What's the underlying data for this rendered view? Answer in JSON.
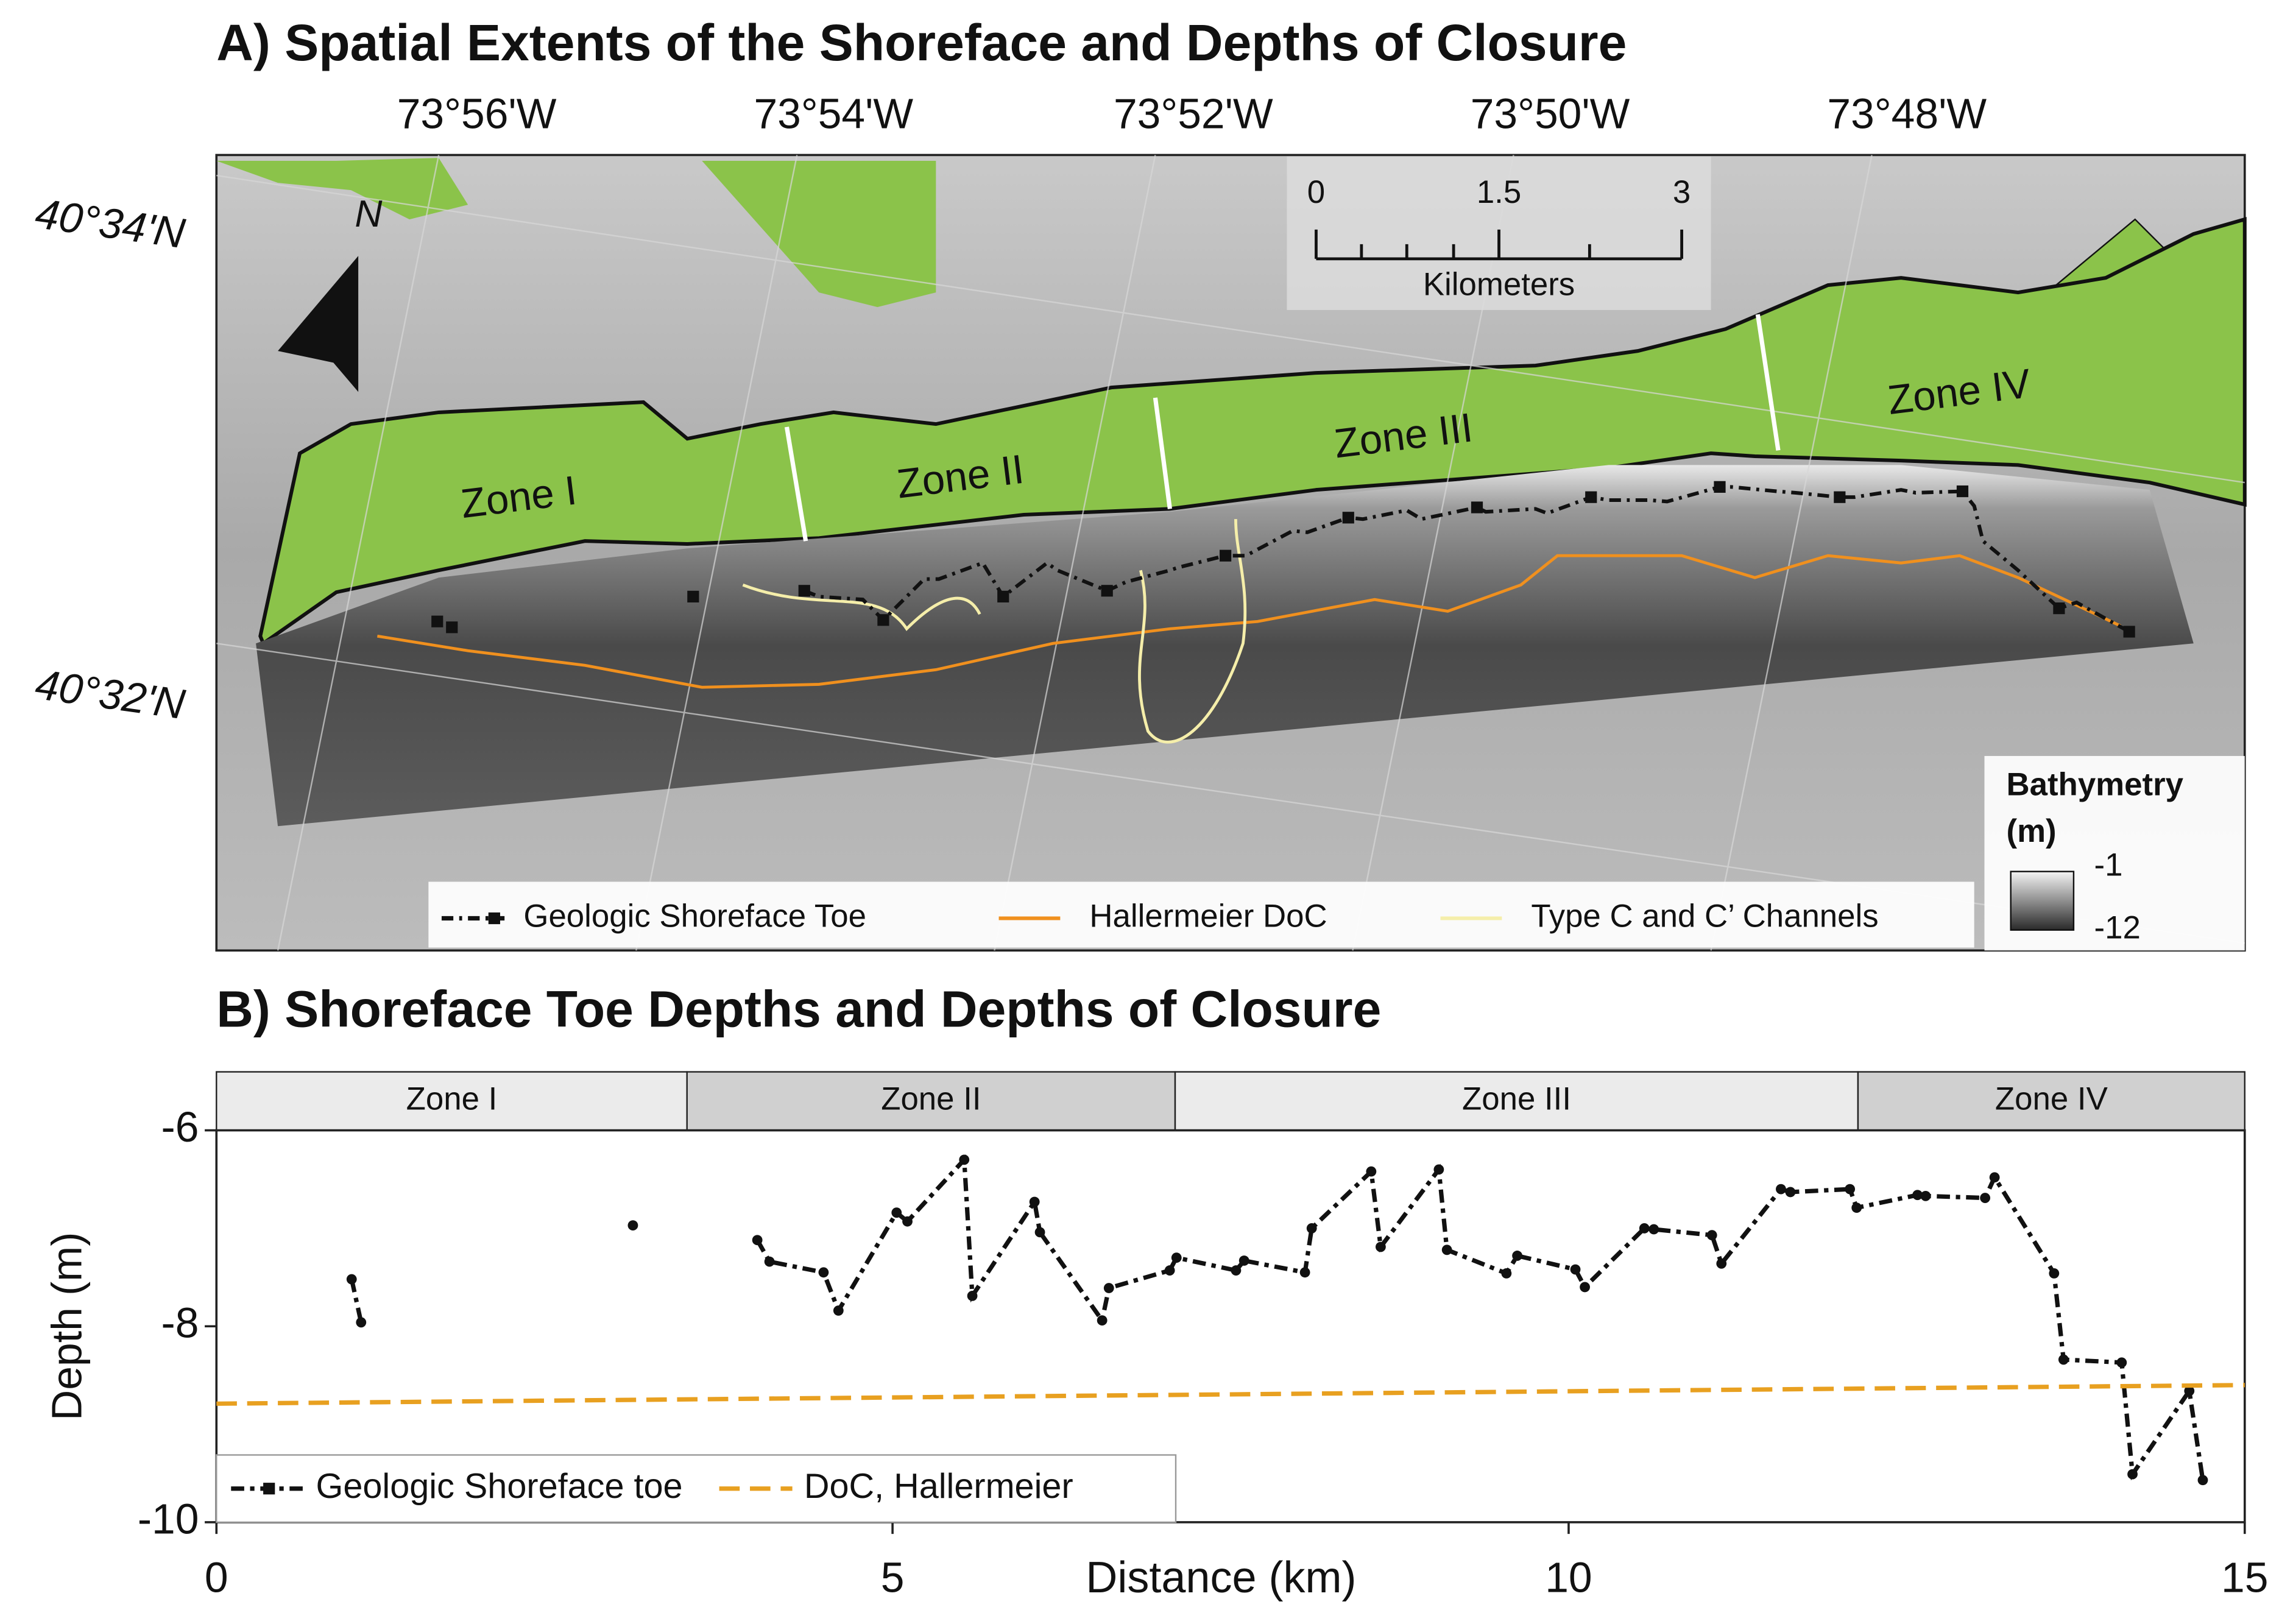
{
  "map": {
    "title": "A) Spatial Extents of the Shoreface and Depths of Closure",
    "longitudes": [
      "73°56'W",
      "73°54'W",
      "73°52'W",
      "73°50'W",
      "73°48'W"
    ],
    "latitudes": [
      "40°34'N",
      "40°32'N"
    ],
    "north": "N",
    "scale_bar": {
      "labels": [
        "0",
        "1.5",
        "3"
      ],
      "unit": "Kilometers"
    },
    "zones": [
      "Zone I",
      "Zone II",
      "Zone III",
      "Zone IV"
    ],
    "legend": [
      "Geologic Shoreface Toe",
      "Hallermeier DoC",
      "Type C and C’ Channels"
    ],
    "bathymetry_legend": {
      "title": "Bathymetry",
      "unit": "(m)",
      "high": "-1",
      "low": "-12"
    }
  },
  "chart_data": {
    "type": "line",
    "title": "B) Shoreface Toe Depths and Depths of Closure",
    "x_label": "Distance (km)",
    "y_label": "Depth (m)",
    "xlim": [
      0,
      15
    ],
    "xticks": [
      0,
      5,
      10,
      15
    ],
    "ylim": [
      -10,
      -6
    ],
    "yticks": [
      -10,
      -8,
      -6
    ],
    "legend": "lower left",
    "zones": [
      {
        "label": "Zone I",
        "start": 0,
        "end": 3.48
      },
      {
        "label": "Zone II",
        "start": 3.48,
        "end": 7.09
      },
      {
        "label": "Zone III",
        "start": 7.09,
        "end": 12.14
      },
      {
        "label": "Zone IV",
        "start": 12.14,
        "end": 15
      }
    ],
    "series": [
      {
        "name": "Geologic Shoreface toe",
        "color": "#111111",
        "style": "dashdot",
        "markers": true,
        "x": [
          1.0,
          1.07,
          null,
          3.08,
          null,
          4.0,
          4.09,
          4.49,
          4.6,
          5.03,
          5.11,
          5.53,
          5.59,
          6.05,
          6.09,
          6.55,
          6.6,
          7.05,
          7.1,
          7.54,
          7.6,
          8.05,
          8.1,
          8.54,
          8.61,
          9.04,
          9.1,
          9.54,
          9.62,
          10.05,
          10.12,
          10.56,
          10.63,
          11.06,
          11.13,
          11.57,
          11.64,
          12.08,
          12.13,
          12.58,
          12.64,
          13.08,
          13.15,
          13.59,
          13.66,
          14.09,
          14.17,
          14.59,
          14.69
        ],
        "values": [
          -7.52,
          -7.96,
          null,
          -6.97,
          null,
          -7.12,
          -7.34,
          -7.45,
          -7.84,
          -6.84,
          -6.93,
          -6.3,
          -7.69,
          -6.73,
          -7.04,
          -7.94,
          -7.61,
          -7.43,
          -7.3,
          -7.43,
          -7.33,
          -7.45,
          -7.0,
          -6.42,
          -7.19,
          -6.4,
          -7.22,
          -7.46,
          -7.28,
          -7.42,
          -7.6,
          -7.0,
          -7.01,
          -7.07,
          -7.36,
          -6.6,
          -6.63,
          -6.6,
          -6.79,
          -6.66,
          -6.67,
          -6.69,
          -6.48,
          -7.46,
          -8.34,
          -8.37,
          -9.51,
          -8.66,
          -9.57
        ]
      },
      {
        "name": "DoC, Hallermeier",
        "color": "#e8a020",
        "style": "dashed",
        "markers": false,
        "x": [
          0,
          15
        ],
        "values": [
          -8.79,
          -8.6
        ]
      }
    ]
  }
}
